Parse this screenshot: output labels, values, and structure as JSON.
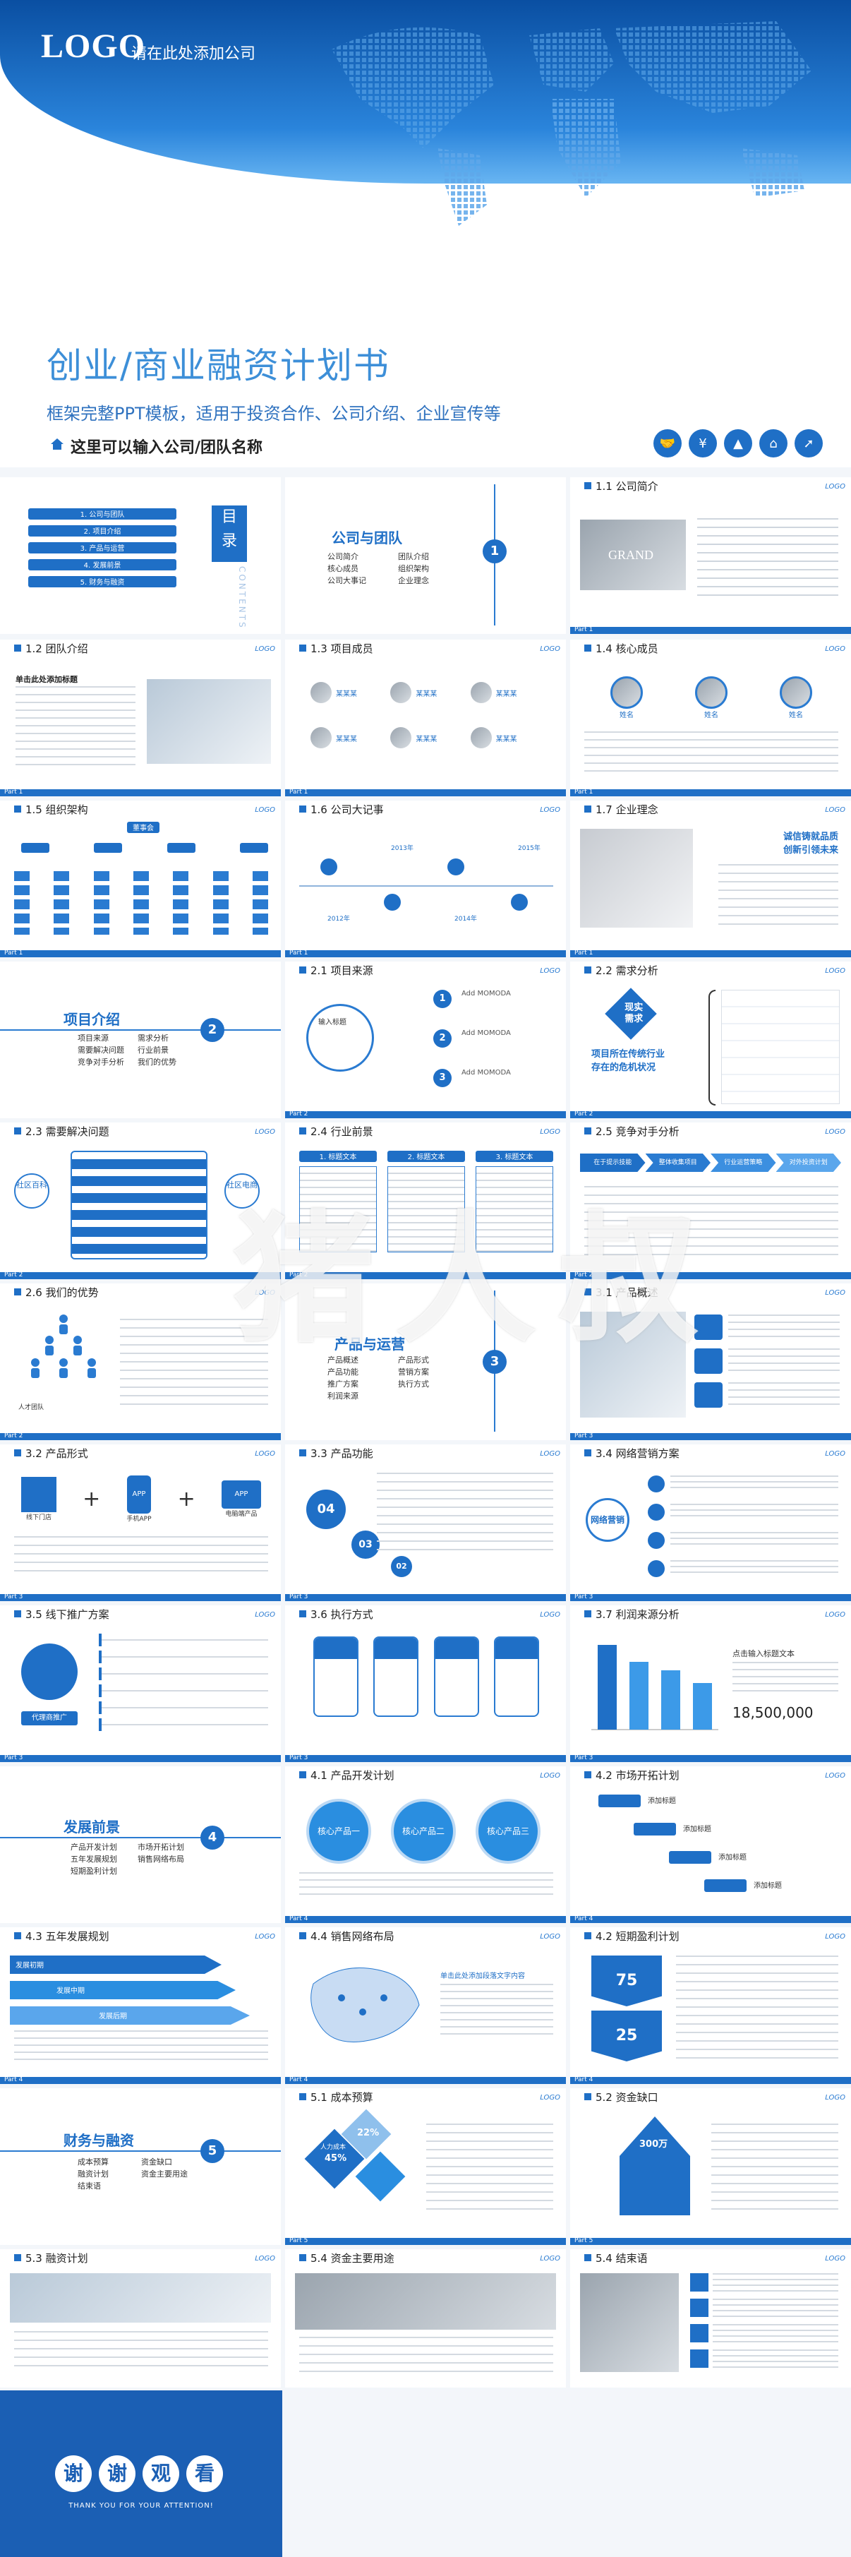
{
  "hero": {
    "logo": "LOGO",
    "company": "请在此处添加公司",
    "title": "创业/商业融资计划书",
    "subtitle": "框架完整PPT模板，适用于投资合作、公司介绍、企业宣传等",
    "team": "这里可以输入公司/团队名称",
    "icons": [
      "handshake-icon",
      "money-icon",
      "chart-icon",
      "shop-icon",
      "rocket-icon"
    ]
  },
  "common": {
    "logo": "LOGO",
    "part1": "Part 1",
    "part2": "Part 2",
    "part3": "Part 3",
    "part4": "Part 4",
    "part5": "Part 5"
  },
  "contents": {
    "title_char1": "目",
    "title_char2": "录",
    "vertical": "CONTENTS",
    "items": [
      "1. 公司与团队",
      "2. 项目介绍",
      "3. 产品与运营",
      "4. 发展前景",
      "5. 财务与融资"
    ]
  },
  "sec1": {
    "title": "公司与团队",
    "num": "1",
    "items": [
      "公司简介",
      "团队介绍",
      "核心成员",
      "组织架构",
      "公司大事记",
      "企业理念"
    ]
  },
  "s11": {
    "title": "1.1 公司简介",
    "sign": "GRAND"
  },
  "s12": {
    "title": "1.2 团队介绍",
    "head": "单击此处添加标题"
  },
  "s13": {
    "title": "1.3 项目成员",
    "name": "某某某"
  },
  "s14": {
    "title": "1.4 核心成员",
    "name": "姓名"
  },
  "s15": {
    "title": "1.5 组织架构",
    "top": "董事会"
  },
  "s16": {
    "title": "1.6 公司大记事",
    "years": [
      "2012年",
      "2013年",
      "2014年",
      "2015年"
    ]
  },
  "s17": {
    "title": "1.7 企业理念",
    "slogan1": "诚信铸就品质",
    "slogan2": "创新引领未来"
  },
  "sec2": {
    "title": "项目介绍",
    "num": "2",
    "items": [
      "项目来源",
      "需求分析",
      "需要解决问题",
      "行业前景",
      "竞争对手分析",
      "我们的优势"
    ]
  },
  "s21": {
    "title": "2.1 项目来源",
    "center": "输入标题",
    "labels": [
      "Add MOMODA",
      "Add MOMODA",
      "Add MOMODA"
    ]
  },
  "s22": {
    "title": "2.2 需求分析",
    "badge1": "现实",
    "badge2": "需求",
    "q1": "项目所在传统行业",
    "q2": "存在的危机状况"
  },
  "s23": {
    "title": "2.3 需要解决问题",
    "left": "社区百科",
    "right": "社区电商"
  },
  "s24": {
    "title": "2.4 行业前景",
    "cols": [
      "1. 标题文本",
      "2. 标题文本",
      "3. 标题文本"
    ]
  },
  "s25": {
    "title": "2.5 竞争对手分析",
    "arrows": [
      "在于提示技能",
      "整体收集项目",
      "行业运营策略",
      "对外投资计划"
    ]
  },
  "s26": {
    "title": "2.6 我们的优势",
    "caption": "人才团队"
  },
  "sec3": {
    "title": "产品与运营",
    "num": "3",
    "items": [
      "产品概述",
      "产品形式",
      "产品功能",
      "营销方案",
      "推广方案",
      "执行方式",
      "利润来源"
    ]
  },
  "s31": {
    "title": "3.1 产品概述"
  },
  "s32": {
    "title": "3.2 产品形式",
    "labels": [
      "线下门店",
      "手机APP",
      "电脑端产品"
    ]
  },
  "s33": {
    "title": "3.3 产品功能",
    "nums": [
      "04",
      "03",
      "02"
    ]
  },
  "s34": {
    "title": "3.4 网络营销方案",
    "center": "网络营销"
  },
  "s35": {
    "title": "3.5 线下推广方案",
    "tag": "代理商推广"
  },
  "s36": {
    "title": "3.6 执行方式"
  },
  "s37": {
    "title": "3.7 利润来源分析",
    "bigtitle": "点击输入标题文本",
    "amount": "18,500,000"
  },
  "chart_data": {
    "type": "bar",
    "series": [
      {
        "values": [
          100,
          80,
          70,
          55
        ]
      }
    ],
    "categories": [
      "",
      "",
      "",
      ""
    ]
  },
  "sec4": {
    "title": "发展前景",
    "num": "4",
    "items": [
      "产品开发计划",
      "市场开拓计划",
      "五年发展规划",
      "销售网络布局",
      "短期盈利计划"
    ]
  },
  "s41": {
    "title": "4.1 产品开发计划",
    "c1": "核心产品一",
    "c2": "核心产品二",
    "c3": "核心产品三"
  },
  "s42": {
    "title": "4.2 市场开拓计划",
    "steps": [
      "添加标题",
      "添加标题",
      "添加标题",
      "添加标题"
    ]
  },
  "s43": {
    "title": "4.3 五年发展规划",
    "phases": [
      "发展初期",
      "发展中期",
      "发展后期"
    ]
  },
  "s44": {
    "title": "4.4 销售网络布局",
    "text": "单击此处添加段落文字内容"
  },
  "s45": {
    "title": "4.2 短期盈利计划",
    "p1": "75",
    "p2": "25"
  },
  "sec5": {
    "title": "财务与融资",
    "num": "5",
    "items": [
      "成本预算",
      "资金缺口",
      "融资计划",
      "资金主要用途",
      "结束语"
    ]
  },
  "s51": {
    "title": "5.1 成本预算",
    "v1": "22%",
    "v2": "45%",
    "v3": "人力成本"
  },
  "s52": {
    "title": "5.2 资金缺口",
    "amount": "300万"
  },
  "s53": {
    "title": "5.3 融资计划"
  },
  "s54": {
    "title": "5.4 资金主要用途"
  },
  "s55": {
    "title": "5.4 结束语"
  },
  "ending": {
    "chars": [
      "谢",
      "谢",
      "观",
      "看"
    ],
    "thanks": "THANK YOU FOR YOUR ATTENTION!"
  },
  "watermark": "猪人叔"
}
